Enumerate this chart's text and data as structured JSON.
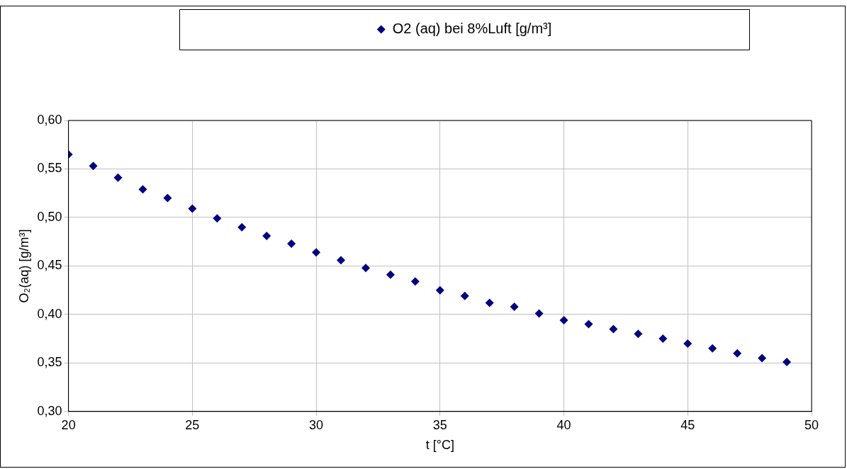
{
  "chart_data": {
    "type": "scatter",
    "xlabel": "t [°C]",
    "ylabel": "O₂(aq) [g/m³]",
    "x": [
      20,
      21,
      22,
      23,
      24,
      25,
      26,
      27,
      28,
      29,
      30,
      31,
      32,
      33,
      34,
      35,
      36,
      37,
      38,
      39,
      40,
      41,
      42,
      43,
      44,
      45,
      46,
      47,
      48,
      49
    ],
    "series": [
      {
        "name": "O2 (aq) bei 8%Luft [g/m³]",
        "color": "#000080",
        "values": [
          0.565,
          0.553,
          0.541,
          0.529,
          0.52,
          0.509,
          0.499,
          0.49,
          0.481,
          0.473,
          0.464,
          0.456,
          0.448,
          0.441,
          0.434,
          0.425,
          0.419,
          0.412,
          0.408,
          0.401,
          0.394,
          0.39,
          0.385,
          0.38,
          0.375,
          0.37,
          0.365,
          0.36,
          0.355,
          0.351
        ]
      }
    ],
    "xlim": [
      20,
      50
    ],
    "xticks": [
      20,
      25,
      30,
      35,
      40,
      45,
      50
    ],
    "ylim": [
      0.3,
      0.6
    ],
    "yticks": [
      {
        "value": 0.3,
        "label": "0,30"
      },
      {
        "value": 0.35,
        "label": "0,35"
      },
      {
        "value": 0.4,
        "label": "0,40"
      },
      {
        "value": 0.45,
        "label": "0,45"
      },
      {
        "value": 0.5,
        "label": "0,50"
      },
      {
        "value": 0.55,
        "label": "0,55"
      },
      {
        "value": 0.6,
        "label": "0,60"
      }
    ],
    "grid": true,
    "legend": "top",
    "marker": "diamond"
  }
}
